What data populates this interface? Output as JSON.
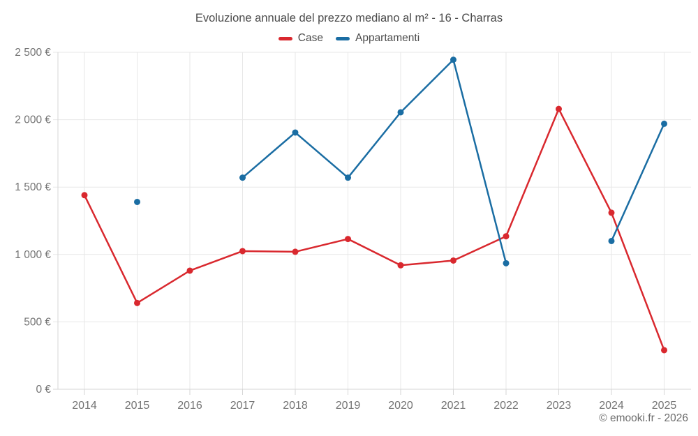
{
  "header": {
    "title": "Evoluzione annuale del prezzo mediano al m² - 16 - Charras"
  },
  "footer": {
    "attribution": "© emooki.fr - 2026"
  },
  "axis": {
    "ytick_labels": [
      "0 €",
      "500 €",
      "1 000 €",
      "1 500 €",
      "2 000 €",
      "2 500 €"
    ],
    "xtick_labels": [
      "2014",
      "2015",
      "2016",
      "2017",
      "2018",
      "2019",
      "2020",
      "2021",
      "2022",
      "2023",
      "2024",
      "2025"
    ]
  },
  "colors": {
    "case": "#d9282e",
    "appartamenti": "#1a6da3",
    "gridline": "#e7e7e7",
    "axis_line": "#d6d6d6",
    "tick_text": "#737373",
    "title_text": "#4a4a4a",
    "footer_text": "#6b6b6b"
  },
  "chart_data": {
    "type": "line",
    "title": "Evoluzione annuale del prezzo mediano al m² - 16 - Charras",
    "categories": [
      2014,
      2015,
      2016,
      2017,
      2018,
      2019,
      2020,
      2021,
      2022,
      2023,
      2024,
      2025
    ],
    "series": [
      {
        "name": "Case",
        "color": "#d9282e",
        "values": [
          1440,
          640,
          880,
          1025,
          1020,
          1115,
          920,
          955,
          1135,
          2080,
          1310,
          290
        ]
      },
      {
        "name": "Appartamenti",
        "color": "#1a6da3",
        "values": [
          null,
          1390,
          null,
          1570,
          1905,
          1570,
          2055,
          2445,
          935,
          null,
          1100,
          1970
        ]
      }
    ],
    "xlabel": "",
    "ylabel": "",
    "unit": "€",
    "ylim": [
      0,
      2500
    ],
    "ytick_step": 500,
    "grid": true,
    "legend_position": "top",
    "marker": "circle",
    "notes": "Appartamenti series has gaps at 2014, 2016 and 2023; 2015 is an isolated point"
  }
}
